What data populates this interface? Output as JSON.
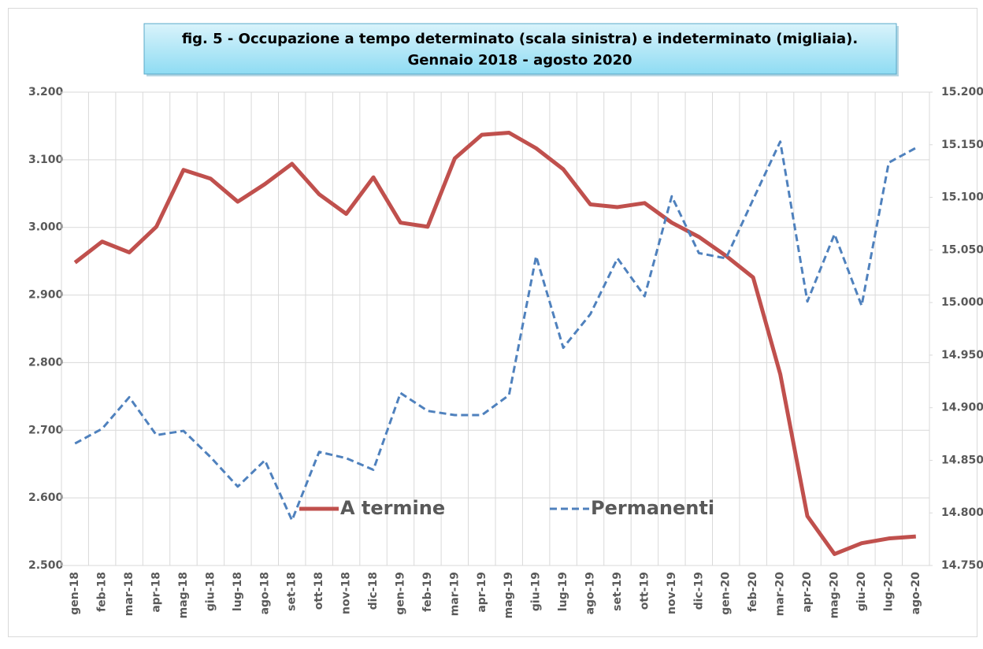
{
  "chart_data": {
    "type": "line",
    "title": "fig. 5 - Occupazione  a tempo determinato (scala sinistra) e indeterminato (migliaia).",
    "subtitle": "Gennaio 2018 - agosto 2020",
    "categories": [
      "gen-18",
      "feb-18",
      "mar-18",
      "apr-18",
      "mag-18",
      "giu-18",
      "lug-18",
      "ago-18",
      "set-18",
      "ott-18",
      "nov-18",
      "dic-18",
      "gen-19",
      "feb-19",
      "mar-19",
      "apr-19",
      "mag-19",
      "giu-19",
      "lug-19",
      "ago-19",
      "set-19",
      "ott-19",
      "nov-19",
      "dic-19",
      "gen-20",
      "feb-20",
      "mar-20",
      "apr-20",
      "mag-20",
      "giu-20",
      "lug-20",
      "ago-20"
    ],
    "series": [
      {
        "name": "A termine",
        "color": "#c0504d",
        "line_style": "solid",
        "axis": "y",
        "values": [
          2948,
          2979,
          2963,
          3001,
          3085,
          3072,
          3038,
          3064,
          3094,
          3049,
          3020,
          3074,
          3007,
          3001,
          3102,
          3137,
          3140,
          3117,
          3086,
          3034,
          3030,
          3036,
          3007,
          2986,
          2958,
          2926,
          2783,
          2573,
          2517,
          2533,
          2540,
          2543
        ]
      },
      {
        "name": "Permanenti",
        "color": "#4f81bd",
        "line_style": "dashed",
        "axis": "y2",
        "values": [
          14866,
          14880,
          14910,
          14874,
          14878,
          14853,
          14825,
          14850,
          14793,
          14858,
          14852,
          14841,
          14914,
          14897,
          14893,
          14893,
          14912,
          15044,
          14957,
          14989,
          15042,
          15006,
          15101,
          15047,
          15042,
          15098,
          15153,
          15001,
          15065,
          14997,
          15133,
          15147
        ]
      }
    ],
    "ylim": [
      2500,
      3200
    ],
    "yticks": [
      {
        "value": 2500,
        "label": "2.500"
      },
      {
        "value": 2600,
        "label": "2.600"
      },
      {
        "value": 2700,
        "label": "2.700"
      },
      {
        "value": 2800,
        "label": "2.800"
      },
      {
        "value": 2900,
        "label": "2.900"
      },
      {
        "value": 3000,
        "label": "3.000"
      },
      {
        "value": 3100,
        "label": "3.100"
      },
      {
        "value": 3200,
        "label": "3.200"
      }
    ],
    "y2lim": [
      14750,
      15200
    ],
    "y2ticks": [
      {
        "value": 14750,
        "label": "14.750"
      },
      {
        "value": 14800,
        "label": "14.800"
      },
      {
        "value": 14850,
        "label": "14.850"
      },
      {
        "value": 14900,
        "label": "14.900"
      },
      {
        "value": 14950,
        "label": "14.950"
      },
      {
        "value": 15000,
        "label": "15.000"
      },
      {
        "value": 15050,
        "label": "15.050"
      },
      {
        "value": 15100,
        "label": "15.100"
      },
      {
        "value": 15150,
        "label": "15.150"
      },
      {
        "value": 15200,
        "label": "15.200"
      }
    ],
    "grid": true,
    "legend": "lower center"
  }
}
